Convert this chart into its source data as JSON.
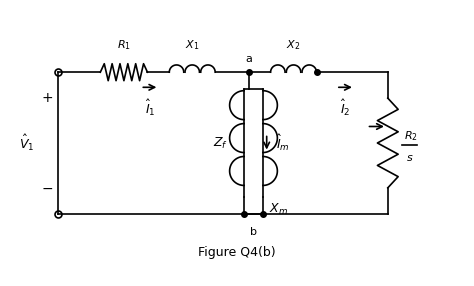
{
  "title": "Figure Q4(b)",
  "bg_color": "#ffffff",
  "line_color": "#000000",
  "figsize": [
    4.74,
    2.86
  ],
  "dpi": 100
}
